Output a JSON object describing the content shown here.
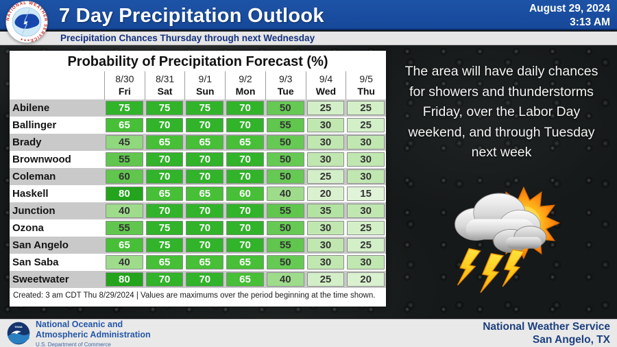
{
  "header": {
    "title": "7 Day Precipitation Outlook",
    "date": "August 29, 2024",
    "time": "3:13 AM",
    "subtitle": "Precipitation Chances Thursday through next Wednesday",
    "logo": "national-weather-service-seal",
    "colors": {
      "bar": "#1a4da0",
      "bar_border": "#0a2c68",
      "subtitle_text": "#14307f"
    }
  },
  "chart_data": {
    "type": "heatmap",
    "title": "Probability of Precipitation Forecast (%)",
    "units": "%",
    "columns": [
      {
        "date": "8/30",
        "day": "Fri"
      },
      {
        "date": "8/31",
        "day": "Sat"
      },
      {
        "date": "9/1",
        "day": "Sun"
      },
      {
        "date": "9/2",
        "day": "Mon"
      },
      {
        "date": "9/3",
        "day": "Tue"
      },
      {
        "date": "9/4",
        "day": "Wed"
      },
      {
        "date": "9/5",
        "day": "Thu"
      }
    ],
    "locations": [
      "Abilene",
      "Ballinger",
      "Brady",
      "Brownwood",
      "Coleman",
      "Haskell",
      "Junction",
      "Ozona",
      "San Angelo",
      "San Saba",
      "Sweetwater"
    ],
    "values_pct": [
      [
        75,
        75,
        75,
        70,
        50,
        25,
        25
      ],
      [
        65,
        70,
        70,
        70,
        55,
        30,
        25
      ],
      [
        45,
        65,
        65,
        65,
        50,
        30,
        30
      ],
      [
        55,
        70,
        70,
        70,
        50,
        30,
        30
      ],
      [
        60,
        70,
        70,
        70,
        50,
        25,
        30
      ],
      [
        80,
        65,
        65,
        60,
        40,
        20,
        15
      ],
      [
        40,
        70,
        70,
        70,
        55,
        35,
        30
      ],
      [
        55,
        75,
        70,
        70,
        50,
        30,
        25
      ],
      [
        65,
        75,
        70,
        70,
        55,
        30,
        25
      ],
      [
        40,
        65,
        65,
        65,
        50,
        30,
        30
      ],
      [
        80,
        70,
        70,
        65,
        40,
        25,
        20
      ]
    ],
    "note": "Created: 3 am CDT Thu 8/29/2024  |  Values are maximums over the period beginning at the time shown.",
    "color_scale": {
      "15": "#e1f4d9",
      "20": "#daf1d0",
      "25": "#d3efc8",
      "30": "#c1e7b1",
      "35": "#b3e3a2",
      "40": "#9edc8c",
      "45": "#8fd87d",
      "50": "#66c954",
      "55": "#60c64e",
      "60": "#47bf37",
      "65": "#47bf37",
      "70": "#31b32a",
      "75": "#31b32a",
      "80": "#23a41c"
    },
    "white_text_min_level": 60,
    "dark_text_color": "#333333",
    "light_text_color": "#ffffff",
    "style_overrides": [
      {
        "location": "Coleman",
        "col": 0,
        "use_level": 55
      }
    ],
    "row_stripe_colors": [
      "#c9c9c9",
      "#ffffff"
    ]
  },
  "panel": {
    "message_lines": [
      "The area will have daily chances",
      "for showers and thunderstorms",
      "Friday, over the Labor Day",
      "weekend, and through Tuesday",
      "next week"
    ],
    "icon": "thunderstorm-with-sun"
  },
  "footer": {
    "left": {
      "org_line1": "National Oceanic and",
      "org_line2": "Atmospheric Administration",
      "dept": "U.S. Department of Commerce",
      "logo": "noaa-emblem"
    },
    "right": {
      "line1": "National Weather Service",
      "line2": "San Angelo, TX"
    }
  }
}
